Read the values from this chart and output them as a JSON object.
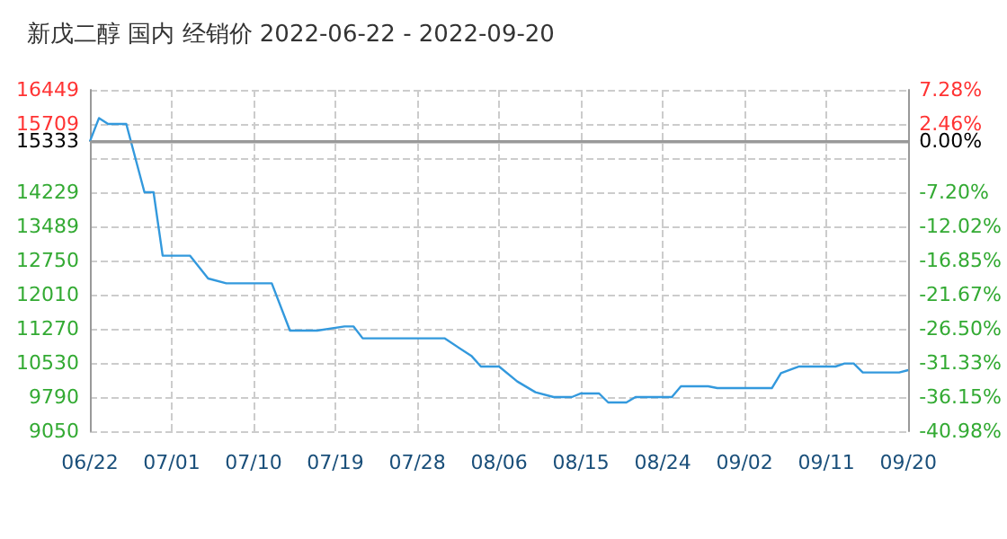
{
  "chart_data": {
    "type": "line",
    "title": "新戊二醇 国内 经销价 2022-06-22 - 2022-09-20",
    "x": [
      "2022-06-22",
      "2022-06-23",
      "2022-06-24",
      "2022-06-26",
      "2022-06-28",
      "2022-06-29",
      "2022-06-30",
      "2022-07-03",
      "2022-07-05",
      "2022-07-07",
      "2022-07-12",
      "2022-07-14",
      "2022-07-17",
      "2022-07-20",
      "2022-07-21",
      "2022-07-22",
      "2022-07-31",
      "2022-08-03",
      "2022-08-04",
      "2022-08-06",
      "2022-08-08",
      "2022-08-10",
      "2022-08-12",
      "2022-08-14",
      "2022-08-15",
      "2022-08-17",
      "2022-08-18",
      "2022-08-20",
      "2022-08-21",
      "2022-08-25",
      "2022-08-26",
      "2022-08-29",
      "2022-08-30",
      "2022-09-05",
      "2022-09-06",
      "2022-09-08",
      "2022-09-12",
      "2022-09-13",
      "2022-09-14",
      "2022-09-15",
      "2022-09-19",
      "2022-09-20"
    ],
    "series": [
      {
        "color": "#3399dd",
        "values": [
          15333,
          15837,
          15709,
          15709,
          14229,
          14229,
          12855,
          12855,
          12360,
          12255,
          12255,
          11231,
          11231,
          11320,
          11320,
          11063,
          11063,
          10674,
          10452,
          10452,
          10128,
          9895,
          9790,
          9790,
          9868,
          9868,
          9673,
          9673,
          9790,
          9790,
          10023,
          10023,
          9984,
          9984,
          10308,
          10452,
          10452,
          10518,
          10518,
          10323,
          10323,
          10374
        ]
      }
    ],
    "xlim": [
      "2022-06-22",
      "2022-09-20"
    ],
    "xticks": [
      {
        "value": "2022-06-22",
        "label": "06/22"
      },
      {
        "value": "2022-07-01",
        "label": "07/01"
      },
      {
        "value": "2022-07-10",
        "label": "07/10"
      },
      {
        "value": "2022-07-19",
        "label": "07/19"
      },
      {
        "value": "2022-07-28",
        "label": "07/28"
      },
      {
        "value": "2022-08-06",
        "label": "08/06"
      },
      {
        "value": "2022-08-15",
        "label": "08/15"
      },
      {
        "value": "2022-08-24",
        "label": "08/24"
      },
      {
        "value": "2022-09-02",
        "label": "09/02"
      },
      {
        "value": "2022-09-11",
        "label": "09/11"
      },
      {
        "value": "2022-09-20",
        "label": "09/20"
      }
    ],
    "ylim": [
      9050,
      16449
    ],
    "yticks": [
      9050,
      9790,
      10530,
      11270,
      12010,
      12750,
      13489,
      14229,
      {
        "value": 14969,
        "label": null
      },
      15333,
      15709,
      16449
    ],
    "y2lim": [
      -40.98,
      7.28
    ],
    "y2ticks": [
      {
        "value": -40.98,
        "label": "-40.98%"
      },
      {
        "value": -36.15,
        "label": "-36.15%"
      },
      {
        "value": -31.33,
        "label": "-31.33%"
      },
      {
        "value": -26.5,
        "label": "-26.50%"
      },
      {
        "value": -21.67,
        "label": "-21.67%"
      },
      {
        "value": -16.85,
        "label": "-16.85%"
      },
      {
        "value": -12.02,
        "label": "-12.02%"
      },
      {
        "value": -7.2,
        "label": "-7.20%"
      },
      {
        "value": 0,
        "label": "0.00%"
      },
      {
        "value": 2.46,
        "label": "2.46%"
      },
      {
        "value": 7.28,
        "label": "7.28%"
      }
    ],
    "ref_lines": [
      {
        "axis": "y",
        "value": 15333,
        "color": "#999999"
      }
    ],
    "grid": true,
    "marker": "none",
    "line_style": "solid"
  }
}
